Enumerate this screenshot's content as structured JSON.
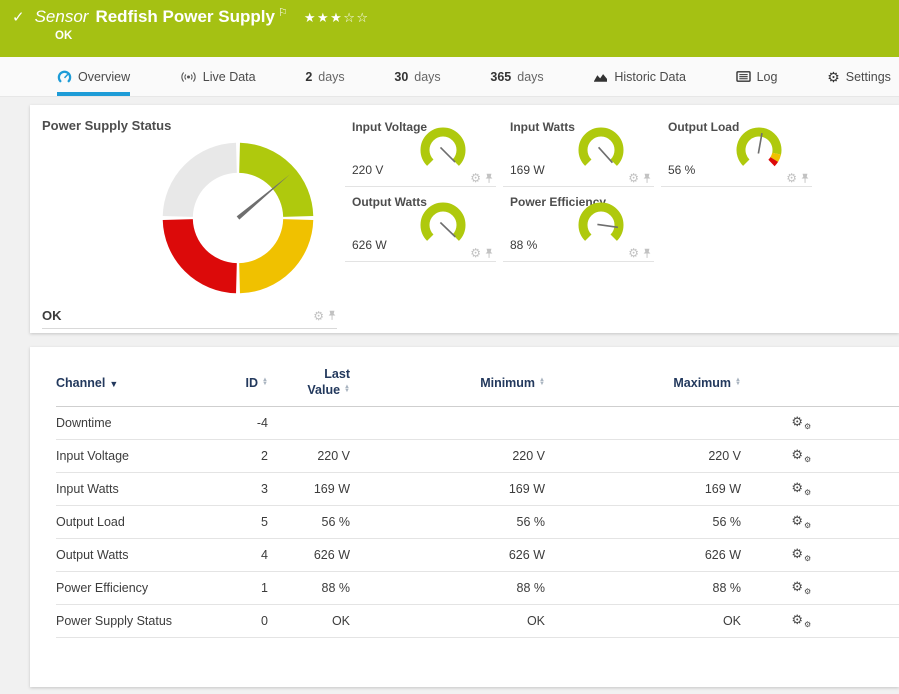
{
  "colors": {
    "brand_green": "#a5c113",
    "accent_blue": "#1e9cd7",
    "gauge_green": "#afc90d",
    "gauge_yellow": "#f0c100",
    "gauge_red": "#dc0a0a",
    "gauge_gray": "#e8e8e8",
    "needle_gray": "#6e6e6e",
    "head_navy": "#23395d"
  },
  "header": {
    "status_check": "✓",
    "kind": "Sensor",
    "title": "Redfish Power Supply",
    "flag": "⚐",
    "stars": "★★★☆☆",
    "status": "OK"
  },
  "tabs": {
    "overview": "Overview",
    "live_data": "Live Data",
    "d2_num": "2",
    "d2_lbl": "days",
    "d30_num": "30",
    "d30_lbl": "days",
    "d365_num": "365",
    "d365_lbl": "days",
    "historic": "Historic Data",
    "log": "Log",
    "settings": "Settings",
    "settings_gear": "⚙"
  },
  "status_gauge": {
    "title": "Power Supply Status",
    "status": "OK",
    "needle_deg": -40
  },
  "gauge_tiles": [
    {
      "label": "Input Voltage",
      "value": "220 V",
      "needle_deg": 45,
      "limit_zone": false
    },
    {
      "label": "Input Watts",
      "value": "169 W",
      "needle_deg": 48,
      "limit_zone": false
    },
    {
      "label": "Output Load",
      "value": "56 %",
      "needle_deg": -80,
      "limit_zone": true
    },
    {
      "label": "Output Watts",
      "value": "626 W",
      "needle_deg": 44,
      "limit_zone": false
    },
    {
      "label": "Power Efficiency",
      "value": "88 %",
      "needle_deg": 8,
      "limit_zone": false
    }
  ],
  "table": {
    "headers": {
      "channel": "Channel",
      "id": "ID",
      "last1": "Last",
      "last2": "Value",
      "min": "Minimum",
      "max": "Maximum"
    },
    "rows": [
      {
        "channel": "Downtime",
        "id": "-4",
        "last": "",
        "min": "",
        "max": ""
      },
      {
        "channel": "Input Voltage",
        "id": "2",
        "last": "220 V",
        "min": "220 V",
        "max": "220 V"
      },
      {
        "channel": "Input Watts",
        "id": "3",
        "last": "169 W",
        "min": "169 W",
        "max": "169 W"
      },
      {
        "channel": "Output Load",
        "id": "5",
        "last": "56 %",
        "min": "56 %",
        "max": "56 %"
      },
      {
        "channel": "Output Watts",
        "id": "4",
        "last": "626 W",
        "min": "626 W",
        "max": "626 W"
      },
      {
        "channel": "Power Efficiency",
        "id": "1",
        "last": "88 %",
        "min": "88 %",
        "max": "88 %"
      },
      {
        "channel": "Power Supply Status",
        "id": "0",
        "last": "OK",
        "min": "OK",
        "max": "OK"
      }
    ]
  },
  "chart_data": {
    "type": "gauge-set",
    "status_gauge": {
      "title": "Power Supply Status",
      "value": "OK",
      "segments": [
        "green",
        "yellow",
        "red",
        "gray"
      ]
    },
    "gauges": [
      {
        "name": "Input Voltage",
        "value": 220,
        "unit": "V"
      },
      {
        "name": "Input Watts",
        "value": 169,
        "unit": "W"
      },
      {
        "name": "Output Load",
        "value": 56,
        "unit": "%"
      },
      {
        "name": "Output Watts",
        "value": 626,
        "unit": "W"
      },
      {
        "name": "Power Efficiency",
        "value": 88,
        "unit": "%"
      }
    ]
  }
}
